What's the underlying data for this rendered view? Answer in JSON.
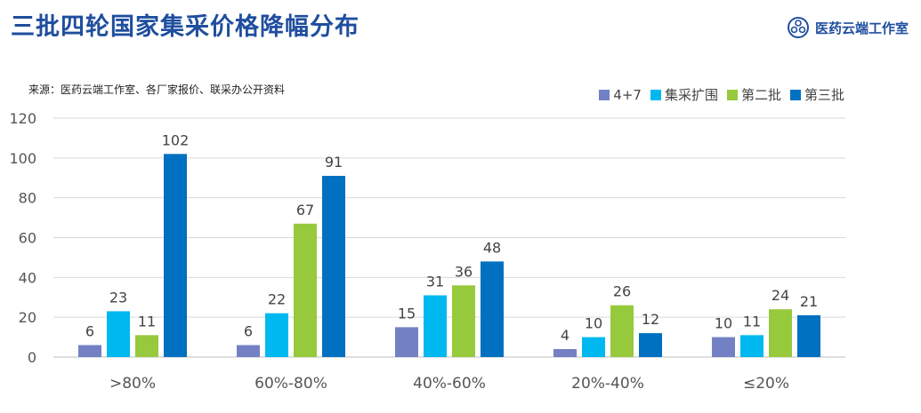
{
  "header": {
    "title": "三批四轮国家集采价格降幅分布",
    "logo_text": "医药云端工作室"
  },
  "source": "来源：医药云端工作室、各厂家报价、联采办公开资料",
  "colors": {
    "title": "#1f4e9e",
    "series": [
      "#7381c4",
      "#00b8f0",
      "#97c93d",
      "#0070c0"
    ],
    "grid": "#d9d9d9",
    "axis_text": "#555555"
  },
  "chart_data": {
    "type": "bar",
    "categories": [
      ">80%",
      "60%-80%",
      "40%-60%",
      "20%-40%",
      "≤20%"
    ],
    "series": [
      {
        "name": "4+7",
        "values": [
          6,
          6,
          15,
          4,
          10
        ]
      },
      {
        "name": "集采扩围",
        "values": [
          23,
          22,
          31,
          10,
          11
        ]
      },
      {
        "name": "第二批",
        "values": [
          11,
          67,
          36,
          26,
          24
        ]
      },
      {
        "name": "第三批",
        "values": [
          102,
          91,
          48,
          12,
          21
        ]
      }
    ],
    "yticks": [
      0,
      20,
      40,
      60,
      80,
      100,
      120
    ],
    "ylim": [
      0,
      120
    ],
    "grid": true,
    "legend": "top-right"
  }
}
